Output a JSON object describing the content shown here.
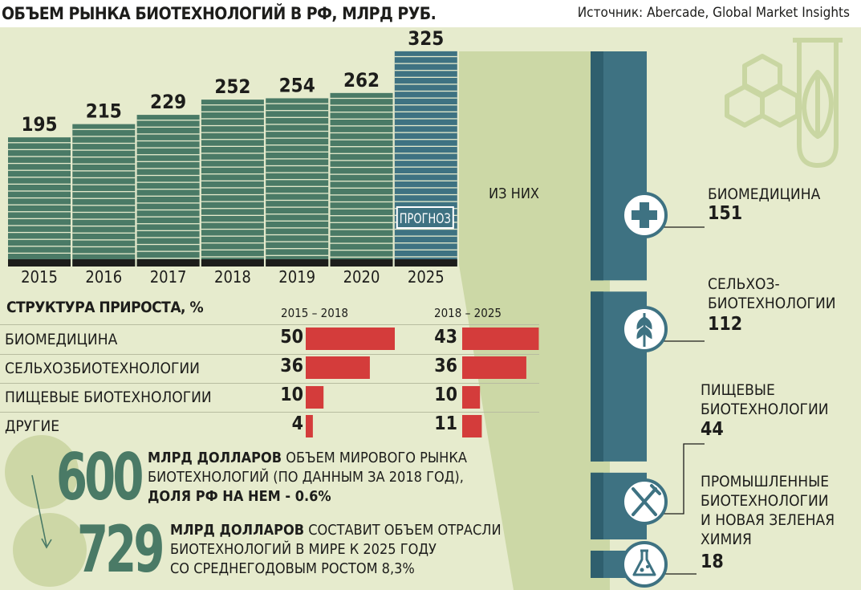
{
  "header": {
    "title": "ОБЪЕМ РЫНКА БИОТЕХНОЛОГИЙ В РФ, МЛРД РУБ.",
    "source": "Источник: Abercade, Global Market Insights"
  },
  "forecast_label": "ПРОГНОЗ",
  "of_which_label": "ИЗ НИХ",
  "structure": {
    "title": "СТРУКТУРА ПРИРОСТА, %",
    "period_1": "2015 – 2018",
    "period_2": "2018 – 2025",
    "rows": [
      {
        "name": "БИОМЕДИЦИНА",
        "v1": "50",
        "v2": "43"
      },
      {
        "name": "СЕЛЬХОЗБИОТЕХНОЛОГИИ",
        "v1": "36",
        "v2": "36"
      },
      {
        "name": "ПИЩЕВЫЕ БИОТЕХНОЛОГИИ",
        "v1": "10",
        "v2": "10"
      },
      {
        "name": "ДРУГИЕ",
        "v1": "4",
        "v2": "11"
      }
    ]
  },
  "sectors": [
    {
      "name_1": "БИОМЕДИЦИНА",
      "name_2": "",
      "name_3": "",
      "value": "151"
    },
    {
      "name_1": "СЕЛЬХОЗ-",
      "name_2": "БИОТЕХНОЛОГИИ",
      "name_3": "",
      "value": "112"
    },
    {
      "name_1": "ПИЩЕВЫЕ",
      "name_2": "БИОТЕХНОЛОГИИ",
      "name_3": "",
      "value": "44"
    },
    {
      "name_1": "ПРОМЫШЛЕННЫЕ",
      "name_2": "БИОТЕХНОЛОГИИ",
      "name_3": "И НОВАЯ ЗЕЛЕНАЯ",
      "name_4": "ХИМИЯ",
      "value": "18"
    }
  ],
  "world": {
    "big_1": "600",
    "bold_1": "МЛРД ДОЛЛАРОВ",
    "text_1a": " ОБЪЕМ МИРОВОГО РЫНКА",
    "text_1b": "БИОТЕХНОЛОГИЙ (ПО ДАННЫМ ЗА 2018 ГОД),",
    "text_1c": "ДОЛЯ РФ НА НЕМ - 0.6%",
    "big_2": "729",
    "bold_2": "МЛРД ДОЛЛАРОВ",
    "text_2a": " СОСТАВИТ ОБЪЕМ ОТРАСЛИ",
    "text_2b": "БИОТЕХНОЛОГИЙ В МИРЕ К 2025 ГОДУ",
    "text_2c": "СО СРЕДНЕГОДОВЫМ РОСТОМ 8,3%"
  },
  "colors": {
    "bar_green": "#4a7a66",
    "bar_forecast": "#3e7282",
    "red": "#d43c3b",
    "background": "#e6ebcd",
    "light_wedge": "#ccd8a6",
    "dark_teal": "#3e7282"
  },
  "icons": [
    "plus-icon",
    "wheat-icon",
    "fork-knife-icon",
    "flask-icon",
    "leaf-test-tube-icon",
    "hexagons-icon"
  ],
  "chart_data": [
    {
      "type": "bar",
      "title": "ОБЪЕМ РЫНКА БИОТЕХНОЛОГИЙ В РФ, МЛРД РУБ.",
      "categories": [
        "2015",
        "2016",
        "2017",
        "2018",
        "2019",
        "2020",
        "2025"
      ],
      "values": [
        195,
        215,
        229,
        252,
        254,
        262,
        325
      ],
      "forecast": [
        false,
        false,
        false,
        false,
        false,
        false,
        true
      ],
      "ylabel": "",
      "xlabel": "",
      "grid": false
    },
    {
      "type": "bar",
      "title": "СТРУКТУРА ПРИРОСТА, %",
      "categories": [
        "БИОМЕДИЦИНА",
        "СЕЛЬХОЗБИОТЕХНОЛОГИИ",
        "ПИЩЕВЫЕ БИОТЕХНОЛОГИИ",
        "ДРУГИЕ"
      ],
      "series": [
        {
          "name": "2015 – 2018",
          "values": [
            50,
            36,
            10,
            4
          ]
        },
        {
          "name": "2018 – 2025",
          "values": [
            43,
            36,
            10,
            11
          ]
        }
      ]
    },
    {
      "type": "bar",
      "title": "ИЗ НИХ",
      "categories": [
        "БИОМЕДИЦИНА",
        "СЕЛЬХОЗБИОТЕХНОЛОГИИ",
        "ПИЩЕВЫЕ БИОТЕХНОЛОГИИ",
        "ПРОМЫШЛЕННЫЕ БИОТЕХНОЛОГИИ И НОВАЯ ЗЕЛЕНАЯ ХИМИЯ"
      ],
      "values": [
        151,
        112,
        44,
        18
      ]
    }
  ]
}
